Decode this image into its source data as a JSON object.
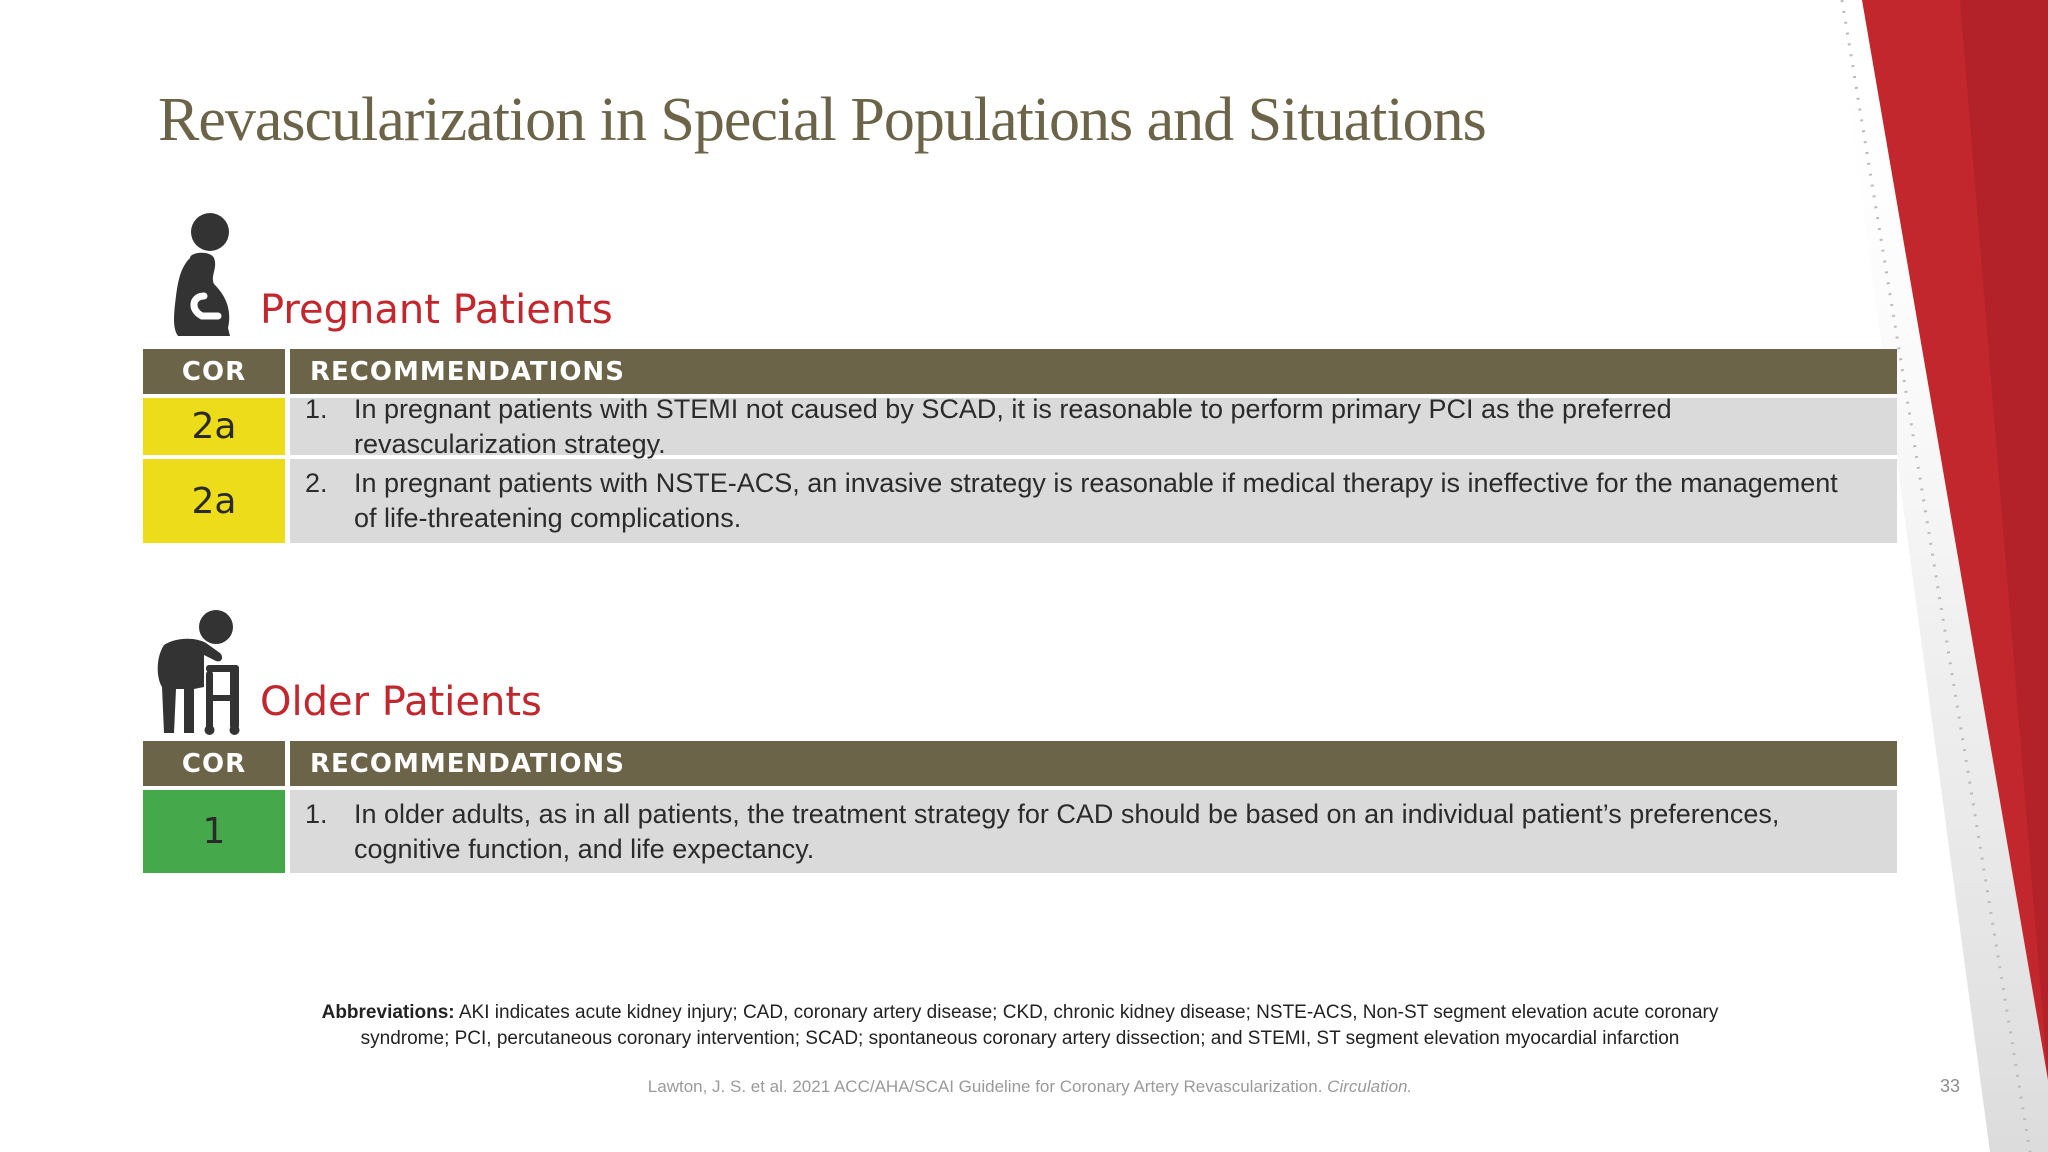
{
  "colors": {
    "title": "#6c6449",
    "section_title": "#c1272d",
    "table_header": "#6c6449",
    "cor_2a": "#eddc1a",
    "cor_1": "#45a84a",
    "row_bg": "#dadada",
    "accent_red": "#c1272d"
  },
  "slide": {
    "title": "Revascularization in Special Populations and Situations",
    "page_number": "33"
  },
  "sections": {
    "pregnant": {
      "icon": "pregnant-woman-icon",
      "title": "Pregnant Patients",
      "header": {
        "cor": "COR",
        "recommendations": "RECOMMENDATIONS"
      },
      "rows": [
        {
          "cor": "2a",
          "num": "1.",
          "text": "In pregnant patients with STEMI not caused by SCAD, it is reasonable to perform primary PCI as the preferred revascularization strategy."
        },
        {
          "cor": "2a",
          "num": "2.",
          "text": "In pregnant patients with NSTE-ACS, an invasive strategy is reasonable if medical therapy is ineffective for the management of life-threatening complications."
        }
      ]
    },
    "older": {
      "icon": "elderly-walker-icon",
      "title": "Older Patients",
      "header": {
        "cor": "COR",
        "recommendations": "RECOMMENDATIONS"
      },
      "rows": [
        {
          "cor": "1",
          "num": "1.",
          "text": "In older adults, as in all patients, the treatment strategy for CAD should be based on an individual patient’s preferences, cognitive function, and life expectancy."
        }
      ]
    }
  },
  "footer": {
    "abbreviations_label": "Abbreviations:",
    "abbreviations_text": "AKI indicates acute kidney injury; CAD, coronary artery disease; CKD, chronic kidney disease; NSTE-ACS, Non-ST segment elevation acute coronary syndrome; PCI, percutaneous coronary intervention; SCAD; spontaneous coronary artery dissection; and STEMI, ST segment elevation myocardial infarction",
    "citation_text": "Lawton, J. S. et al. 2021 ACC/AHA/SCAI Guideline for Coronary Artery Revascularization.",
    "citation_journal": "Circulation."
  }
}
